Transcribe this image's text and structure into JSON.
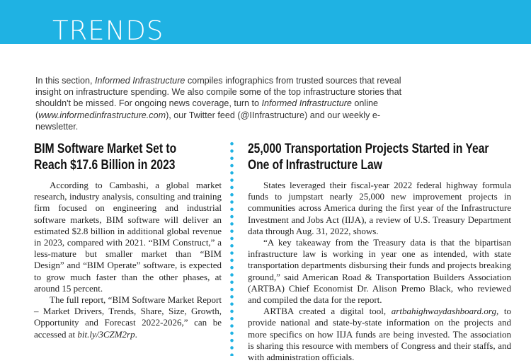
{
  "header": {
    "title": "TRENDS"
  },
  "intro": [
    "In this section, ",
    "Informed Infrastructure",
    " compiles infographics from trusted sources that reveal insight on infrastructure spending. We also compile some of the top infrastructure stories that shouldn't be missed. For ongoing news coverage, turn to ",
    "Informed Infrastructure",
    " online (",
    "www.informedinfrastructure.com",
    "), our Twitter feed (@IInfrastructure) and our weekly e-newsletter."
  ],
  "articles": [
    {
      "headline": [
        "BIM Software Market Set to",
        "Reach $17.6 Billion in 2023"
      ],
      "paragraphs": [
        [
          "According to Cambashi, a global market research, industry analysis, consulting and training firm focused on engineering and industrial software markets, BIM software will deliver an estimated $2.8 billion in additional global revenue in 2023, compared with 2021. “BIM Construct,” a less-mature but smaller market than “BIM Design” and “BIM Operate” software, is expected to grow much faster than the other phases, at around 15 percent."
        ],
        [
          "The full report, “BIM Software Market Report – Market Drivers, Trends, Share, Size, Growth, Opportunity and Forecast 2022-2026,” can be accessed at ",
          "bit.ly/3CZM2rp",
          "."
        ]
      ]
    },
    {
      "headline": [
        "25,000 Transportation Projects Started in Year",
        "One of Infrastructure Law"
      ],
      "paragraphs": [
        [
          "States leveraged their fiscal-year 2022 federal highway formula funds to jumpstart nearly 25,000 new improvement projects in communities across America during the first year of the Infrastructure Investment and Jobs Act (IIJA), a review of U.S. Treasury Department data through Aug. 31, 2022, shows."
        ],
        [
          "“A key takeaway from the Treasury data is that the bipartisan infrastructure law is working in year one as intended, with state transportation departments disbursing their funds and projects breaking ground,” said American Road & Transportation Builders Association (ARTBA) Chief Economist Dr. Alison Premo Black, who reviewed and compiled the data for the report."
        ],
        [
          "ARTBA created a digital tool, ",
          "artbahighwaydashboard.org",
          ", to provide national and state-by-state information on the projects and more specifics on how IIJA funds are being invested. The association is sharing this resource with members of Congress and their staffs, and with administration officials."
        ]
      ]
    }
  ]
}
